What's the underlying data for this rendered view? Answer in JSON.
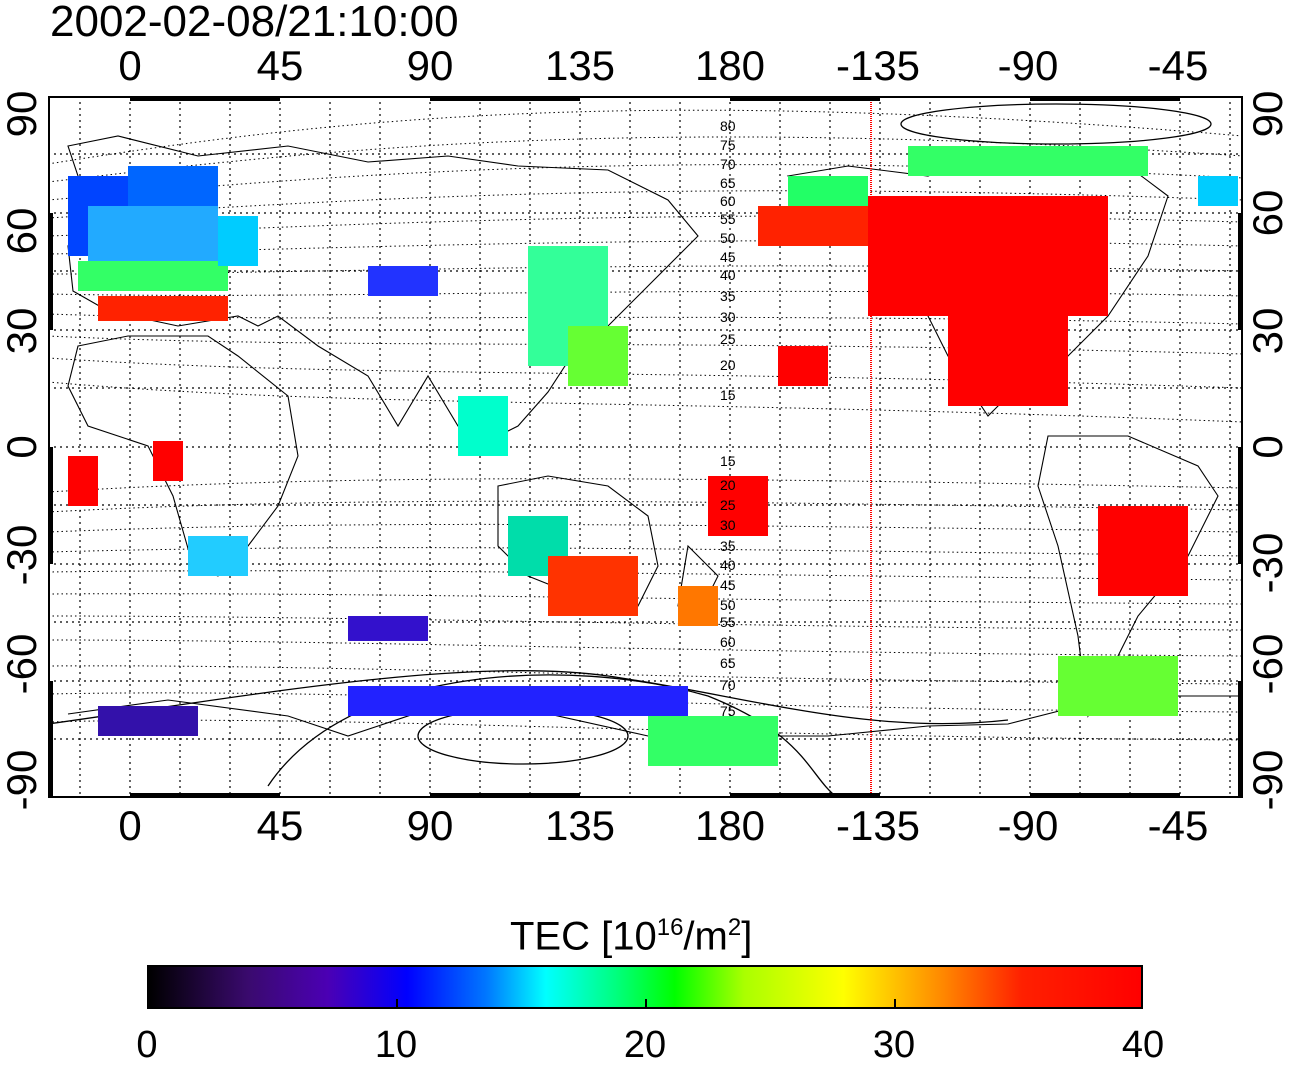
{
  "title": "2002-02-08/21:10:00",
  "axes": {
    "top_ticks": [
      "0",
      "45",
      "90",
      "135",
      "180",
      "-135",
      "-90",
      "-45"
    ],
    "bottom_ticks": [
      "0",
      "45",
      "90",
      "135",
      "180",
      "-135",
      "-90",
      "-45"
    ],
    "left_ticks": [
      "90",
      "60",
      "30",
      "0",
      "-30",
      "-60",
      "-90"
    ],
    "right_ticks": [
      "90",
      "60",
      "30",
      "0",
      "-30",
      "-60",
      "-90"
    ],
    "lon_range": [
      -25,
      335
    ],
    "lat_range": [
      -90,
      90
    ]
  },
  "contour_labels": {
    "north": [
      "80",
      "75",
      "70",
      "65",
      "60",
      "55",
      "50",
      "45",
      "40",
      "35",
      "30",
      "25",
      "20",
      "15"
    ],
    "south": [
      "15",
      "20",
      "25",
      "30",
      "35",
      "40",
      "45",
      "50",
      "55",
      "60",
      "65",
      "70",
      "75"
    ]
  },
  "terminator_longitude": -134,
  "colorbar": {
    "title": "TEC  [10",
    "exponent": "16",
    "unit": "/m",
    "unit_exponent": "2",
    "close": "]",
    "ticks": [
      "0",
      "10",
      "20",
      "30",
      "40"
    ],
    "range": [
      0,
      40
    ]
  },
  "colors": {
    "terminator": "#ff0000",
    "high_tec": "#ff0000",
    "grid": "#000000"
  }
}
